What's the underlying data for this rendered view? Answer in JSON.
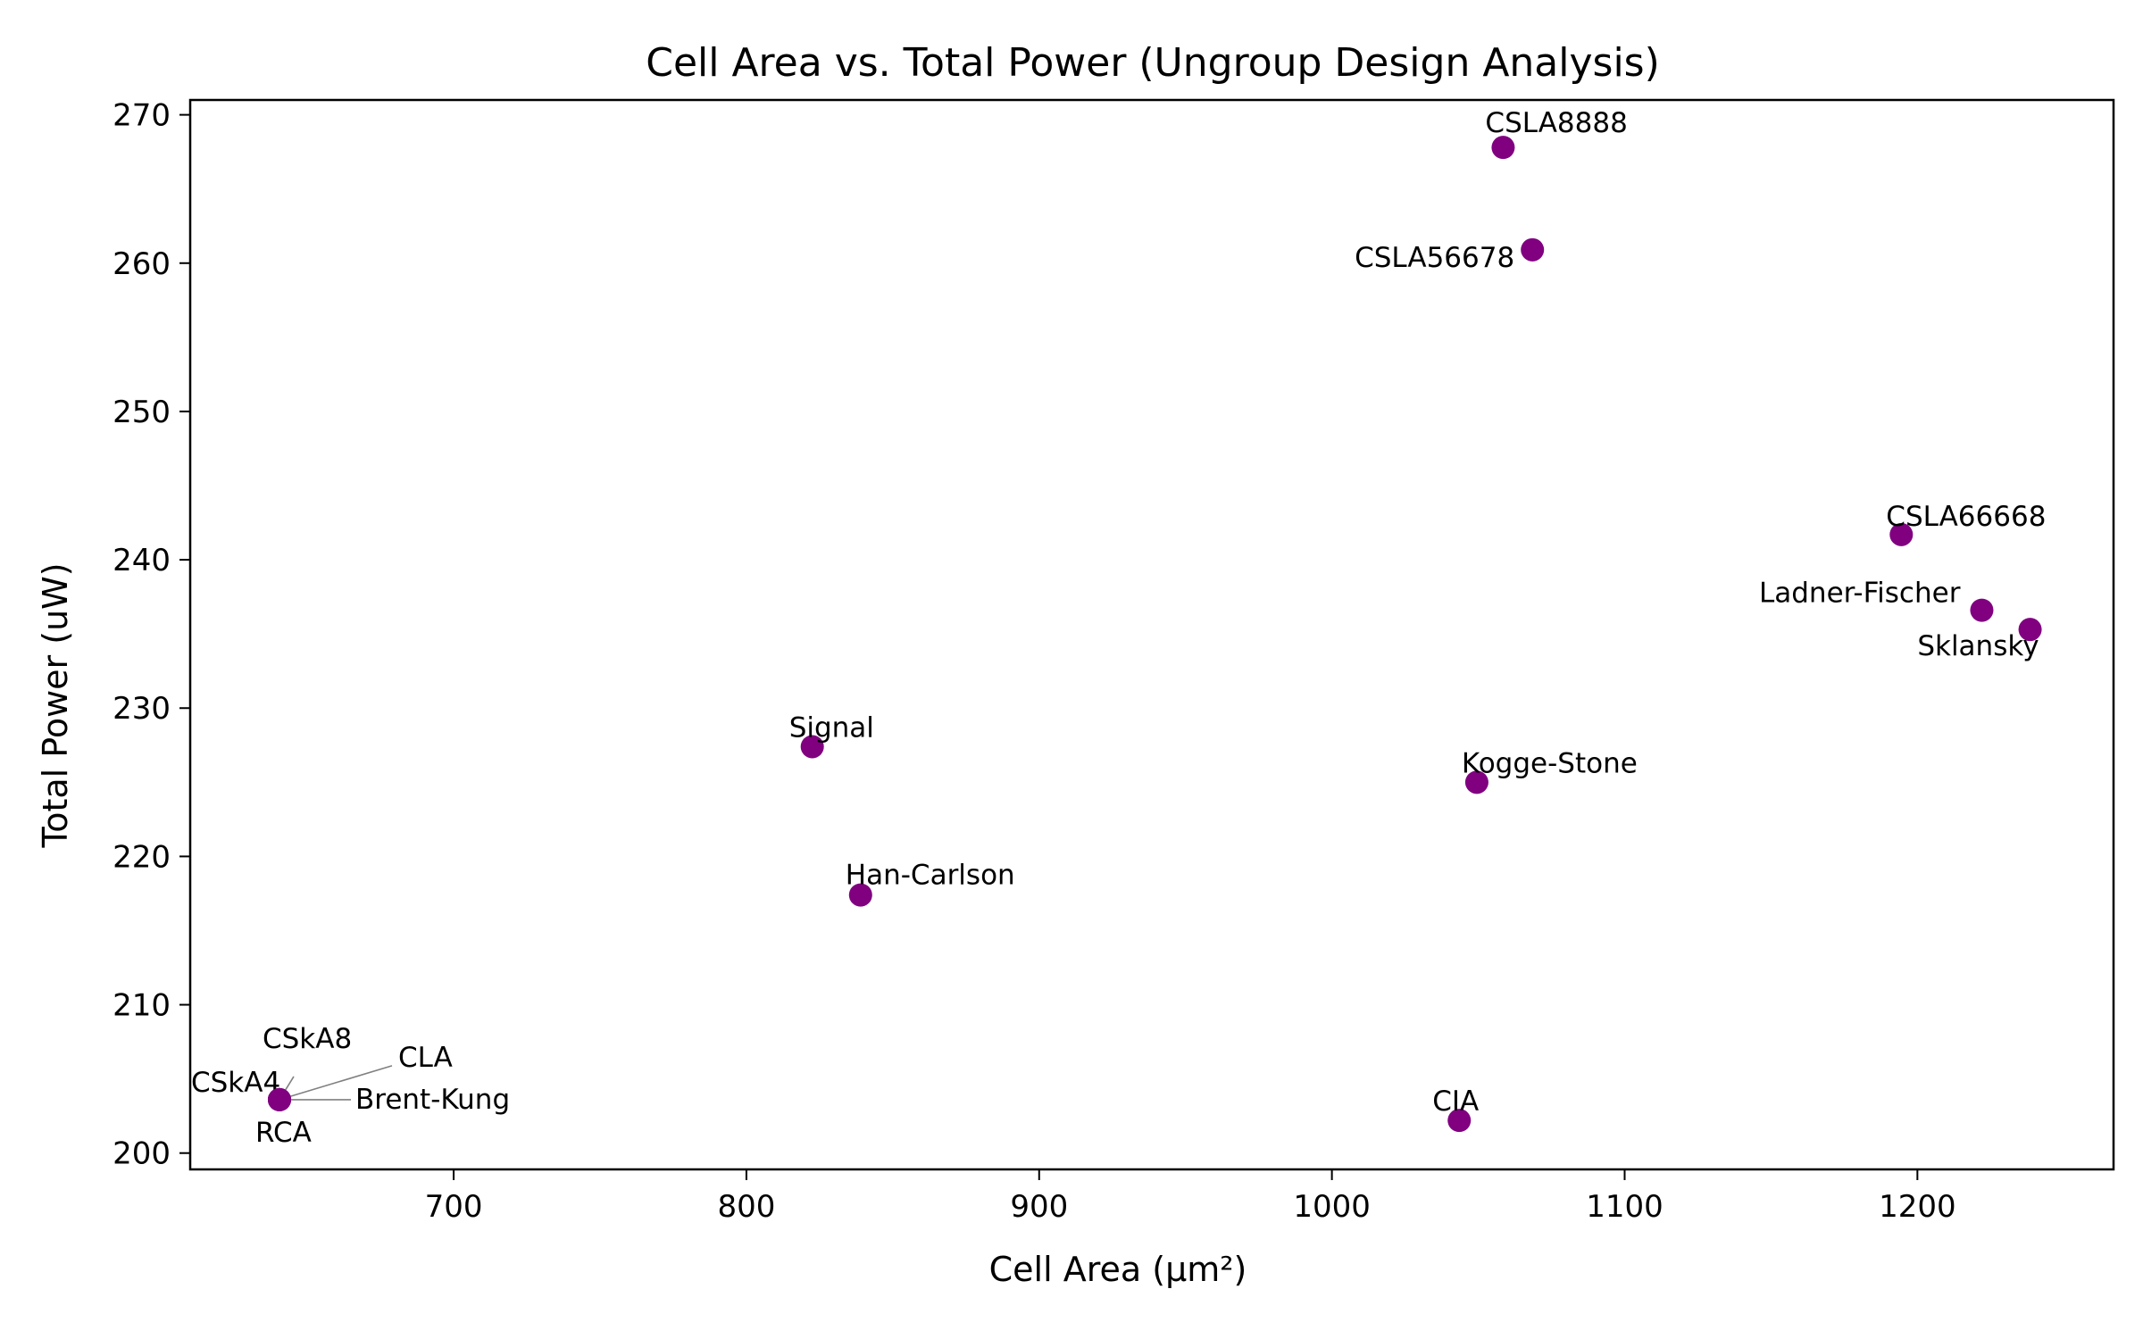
{
  "chart_data": {
    "type": "scatter",
    "title": "Cell Area vs. Total Power (Ungroup Design Analysis)",
    "xlabel": "Cell Area (μm²)",
    "ylabel": "Total Power (uW)",
    "xlim": [
      610,
      1267
    ],
    "ylim": [
      198.9,
      271.0
    ],
    "xticks": [
      700,
      800,
      900,
      1000,
      1100,
      1200
    ],
    "yticks": [
      200,
      210,
      220,
      230,
      240,
      250,
      260,
      270
    ],
    "grid": false,
    "marker_color": "#800080",
    "points": [
      {
        "label": "CSLA8888",
        "x": 1058.5,
        "y": 267.8
      },
      {
        "label": "CSLA56678",
        "x": 1068.5,
        "y": 260.9
      },
      {
        "label": "CSLA66668",
        "x": 1194.5,
        "y": 241.7
      },
      {
        "label": "Ladner-Fischer",
        "x": 1222.0,
        "y": 236.6
      },
      {
        "label": "Sklansky",
        "x": 1238.5,
        "y": 235.3
      },
      {
        "label": "Signal",
        "x": 822.5,
        "y": 227.4
      },
      {
        "label": "Kogge-Stone",
        "x": 1049.5,
        "y": 225.0
      },
      {
        "label": "Han-Carlson",
        "x": 839.0,
        "y": 217.4
      },
      {
        "label": "CIA",
        "x": 1043.5,
        "y": 202.2
      },
      {
        "label": "CSkA8",
        "x": 640.5,
        "y": 203.6
      },
      {
        "label": "CLA",
        "x": 640.5,
        "y": 203.6
      },
      {
        "label": "CSkA4",
        "x": 640.5,
        "y": 203.6
      },
      {
        "label": "Brent-Kung",
        "x": 640.5,
        "y": 203.6
      },
      {
        "label": "RCA",
        "x": 640.5,
        "y": 203.6
      }
    ]
  }
}
